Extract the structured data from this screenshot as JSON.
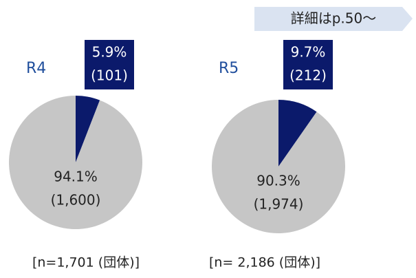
{
  "header": {
    "link": "詳細はp.50～"
  },
  "chart_data": [
    {
      "type": "pie",
      "title": "R4",
      "values": [
        5.9,
        94.1
      ],
      "value_labels": [
        "5.9%",
        "94.1%"
      ],
      "counts": [
        101,
        1600
      ],
      "count_labels": [
        "(101)",
        "(1,600)"
      ],
      "colors": [
        "#0b1a6b",
        "#c6c6c6"
      ],
      "note": "[n=1,701 (団体)]"
    },
    {
      "type": "pie",
      "title": "R5",
      "values": [
        9.7,
        90.3
      ],
      "value_labels": [
        "9.7%",
        "90.3%"
      ],
      "counts": [
        212,
        1974
      ],
      "count_labels": [
        "(212)",
        "(1,974)"
      ],
      "colors": [
        "#0b1a6b",
        "#c6c6c6"
      ],
      "note": "[n= 2,186 (団体)]"
    }
  ]
}
